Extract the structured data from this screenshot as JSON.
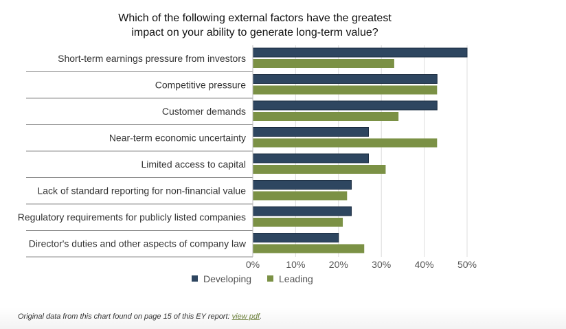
{
  "chart_data": {
    "type": "bar",
    "orientation": "horizontal",
    "title_lines": [
      "Which of the following external factors have the greatest",
      "impact on your ability to generate long-term value?"
    ],
    "categories": [
      "Short-term earnings pressure from investors",
      "Competitive pressure",
      "Customer demands",
      "Near-term economic uncertainty",
      "Limited access to capital",
      "Lack of standard reporting for non-financial value",
      "Regulatory requirements for publicly listed companies",
      "Director's duties and other aspects of company law"
    ],
    "series": [
      {
        "name": "Developing",
        "color": "#2e4660",
        "values": [
          50,
          43,
          43,
          27,
          27,
          23,
          23,
          20
        ]
      },
      {
        "name": "Leading",
        "color": "#7b9145",
        "values": [
          33,
          43,
          34,
          43,
          31,
          22,
          21,
          26
        ]
      }
    ],
    "xlim": [
      0,
      50
    ],
    "xticks": [
      "0%",
      "10%",
      "20%",
      "30%",
      "40%",
      "50%"
    ],
    "grid": true,
    "legend": "bottom"
  },
  "footer": {
    "text": "Original data from this chart found on page 15 of this EY report: ",
    "link": "view pdf",
    "end": "."
  }
}
